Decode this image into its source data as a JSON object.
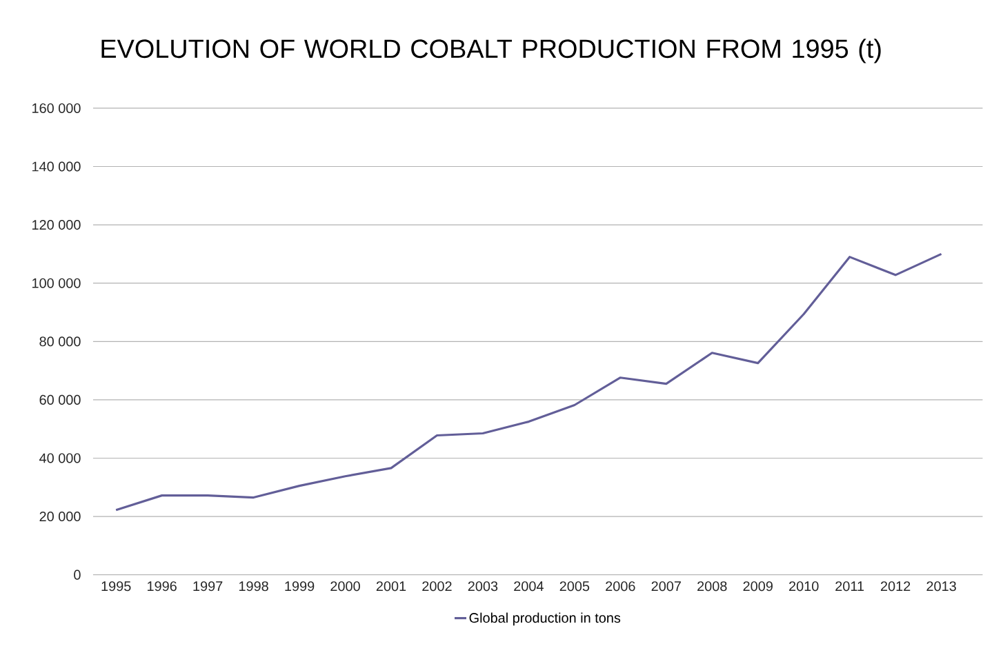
{
  "chart_data": {
    "type": "line",
    "title": "EVOLUTION OF WORLD COBALT PRODUCTION FROM 1995 (t)",
    "categories": [
      "1995",
      "1996",
      "1997",
      "1998",
      "1999",
      "2000",
      "2001",
      "2002",
      "2003",
      "2004",
      "2005",
      "2006",
      "2007",
      "2008",
      "2009",
      "2010",
      "2011",
      "2012",
      "2013"
    ],
    "series": [
      {
        "name": "Global production in tons",
        "color": "#625e98",
        "values": [
          22200,
          27200,
          27200,
          26500,
          30500,
          33800,
          36600,
          47800,
          48500,
          52500,
          58200,
          67600,
          65500,
          76100,
          72600,
          89400,
          109000,
          102800,
          110000
        ]
      }
    ],
    "ylim": [
      0,
      160000
    ],
    "yticks": [
      {
        "value": 0,
        "label": "0"
      },
      {
        "value": 20000,
        "label": "20 000"
      },
      {
        "value": 40000,
        "label": "40 000"
      },
      {
        "value": 60000,
        "label": "60 000"
      },
      {
        "value": 80000,
        "label": "80 000"
      },
      {
        "value": 100000,
        "label": "100 000"
      },
      {
        "value": 120000,
        "label": "120 000"
      },
      {
        "value": 140000,
        "label": "140 000"
      },
      {
        "value": 160000,
        "label": "160 000"
      }
    ],
    "grid": "y",
    "legend": "bottom",
    "marker": "none",
    "line_style": "solid"
  }
}
